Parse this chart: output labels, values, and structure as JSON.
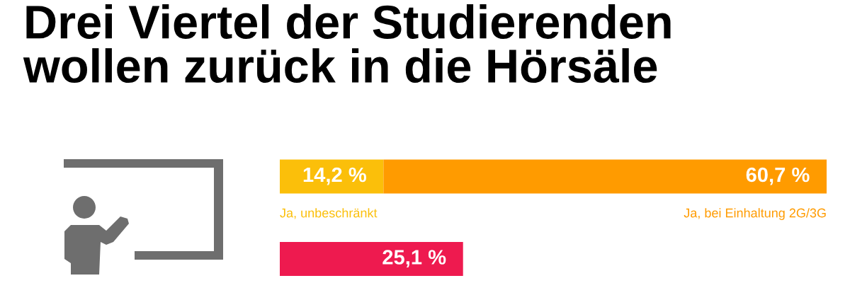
{
  "chart_data": {
    "type": "bar",
    "title": "Drei Viertel der Studierenden\nwollen zurück in die Hörsäle",
    "orientation": "horizontal",
    "stacked": true,
    "categories": [
      null,
      null
    ],
    "series": [
      {
        "name": "Ja, unbeschränkt",
        "color": "#fbbf0a",
        "values": [
          14.2,
          null
        ],
        "value_labels": [
          "14,2 %",
          null
        ]
      },
      {
        "name": "Ja, bei Einhaltung 2G/3G",
        "color": "#ff9b00",
        "values": [
          60.7,
          null
        ],
        "value_labels": [
          "60,7 %",
          null
        ]
      },
      {
        "color": "#ee1a4f",
        "values": [
          null,
          25.1
        ],
        "value_labels": [
          null,
          "25,1 %"
        ]
      }
    ],
    "legend": false,
    "tick_labels": false
  }
}
